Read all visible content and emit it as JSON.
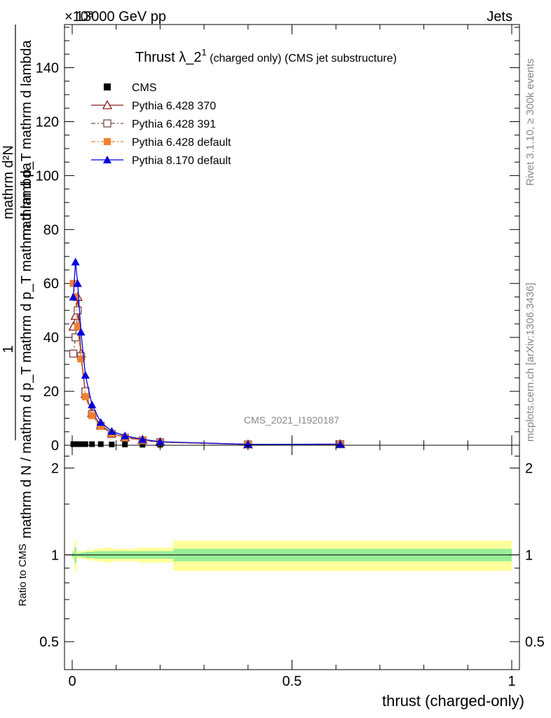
{
  "header": {
    "energy": "13000 GeV pp",
    "category": "Jets",
    "exponent": "×10³"
  },
  "title": {
    "main": "Thrust λ_2",
    "sup": "1",
    "tail": " (charged only) (CMS jet substructure)"
  },
  "side_labels": {
    "rivet": "Rivet 3.1.10, ≥ 300k events",
    "mcplots": "mcplots.cern.ch [arXiv:1306.3436]"
  },
  "watermark": "CMS_2021_I1920187",
  "ylabel": {
    "one": "1",
    "numerator": "mathrm d²N",
    "numerator_line2": "mathrm d p_T mathrm d lambda",
    "denominator": "mathrm d N / mathrm d p_T mathrm d p_T mathrm d lambda"
  },
  "ratio_label": "Ratio to CMS",
  "xlabel": "thrust (charged-only)",
  "legend": [
    {
      "label": "CMS",
      "color": "#000000",
      "marker": "square-filled",
      "line": "none"
    },
    {
      "label": "Pythia 6.428 370",
      "color": "#8b1a1a",
      "marker": "triangle-open",
      "line": "solid"
    },
    {
      "label": "Pythia 6.428 391",
      "color": "#7a4a4a",
      "marker": "square-open",
      "line": "dashdot"
    },
    {
      "label": "Pythia 6.428 default",
      "color": "#f08030",
      "marker": "square-filled",
      "line": "dashdot"
    },
    {
      "label": "Pythia 8.170 default",
      "color": "#0000dd",
      "marker": "triangle-filled",
      "line": "solid"
    }
  ],
  "chart_data": {
    "type": "line",
    "x_ticks": [
      "0",
      "0.5",
      "1"
    ],
    "x_tick_values": [
      0,
      0.5,
      1
    ],
    "y_ticks": [
      "0",
      "20",
      "40",
      "60",
      "80",
      "100",
      "120",
      "140"
    ],
    "y_tick_values": [
      0,
      20,
      40,
      60,
      80,
      100,
      120,
      140
    ],
    "ratio_ticks": [
      "0.5",
      "1",
      "2"
    ],
    "ratio_tick_values": [
      0.5,
      1,
      2
    ],
    "xlim": [
      0,
      1
    ],
    "ylim": [
      0,
      156
    ],
    "ratio_ylim": [
      0.4,
      2.4
    ],
    "x": [
      0.0025,
      0.0075,
      0.0125,
      0.02,
      0.03,
      0.045,
      0.065,
      0.09,
      0.12,
      0.16,
      0.2,
      0.4,
      0.61
    ],
    "series": [
      {
        "name": "CMS",
        "values": [
          0.4,
          0.4,
          0.4,
          0.4,
          0.4,
          0.4,
          0.4,
          0.3,
          0.3,
          0.2,
          0.2,
          0.1,
          0.1
        ]
      },
      {
        "name": "Pythia 6.428 370",
        "values": [
          44,
          48,
          55,
          34,
          19,
          12,
          7.5,
          4.5,
          3,
          2,
          1.2,
          0.3,
          0.4
        ]
      },
      {
        "name": "Pythia 6.428 391",
        "values": [
          34,
          40,
          50,
          33,
          20,
          11.5,
          7.2,
          4.2,
          2.8,
          1.8,
          1.1,
          0.3,
          0.4
        ]
      },
      {
        "name": "Pythia 6.428 default",
        "values": [
          60,
          55,
          44,
          32,
          18,
          11,
          7,
          4.3,
          2.9,
          1.9,
          1.1,
          0.3,
          0.4
        ]
      },
      {
        "name": "Pythia 8.170 default",
        "values": [
          55,
          68,
          60,
          42,
          26,
          15,
          8.5,
          5.2,
          3.5,
          2.2,
          1.3,
          0.35,
          0.4
        ]
      }
    ],
    "ratio_band": {
      "x_edges": [
        0,
        0.005,
        0.01,
        0.02,
        0.03,
        0.05,
        0.07,
        0.09,
        0.12,
        0.15,
        0.19,
        0.23,
        1
      ],
      "yellow_half": [
        0.04,
        0.12,
        0.03,
        0.03,
        0.04,
        0.05,
        0.06,
        0.05,
        0.05,
        0.06,
        0.06,
        0.12
      ],
      "green_half": [
        0.02,
        0.06,
        0.015,
        0.02,
        0.025,
        0.03,
        0.03,
        0.03,
        0.03,
        0.03,
        0.03,
        0.05
      ]
    }
  }
}
